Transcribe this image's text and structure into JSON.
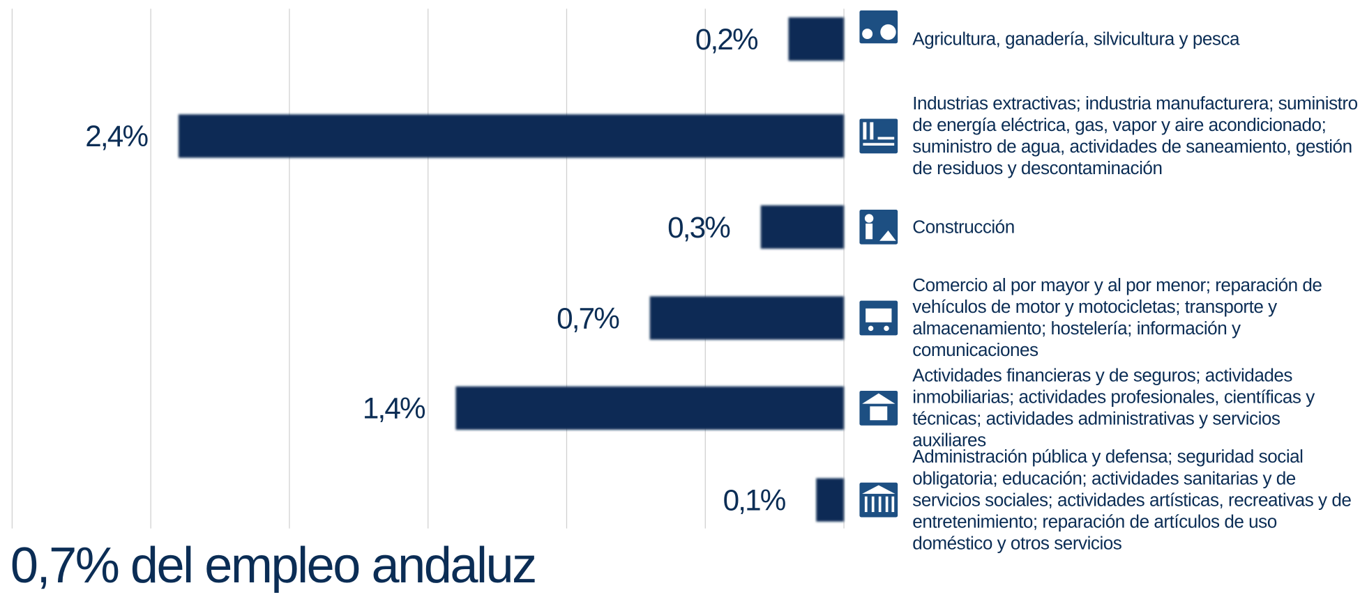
{
  "chart_data": {
    "type": "bar",
    "orientation": "horizontal",
    "direction": "leftward",
    "title": "0,7% del empleo andaluz",
    "categories": [
      "Agricultura, ganadería, silvicultura y pesca",
      "Industrias extractivas; industria manufacturera; suministro de energía eléctrica, gas, vapor y aire acondicionado; suministro de agua, actividades de saneamiento, gestión de residuos y descontaminación",
      "Construcción",
      "Comercio al por mayor y al por menor; reparación de vehículos de motor y motocicletas; transporte y almacenamiento; hostelería; información y comunicaciones",
      "Actividades financieras y de seguros; actividades inmobiliarias; actividades profesionales, científicas y técnicas; actividades administrativas y servicios auxiliares",
      "Administración pública y defensa; seguridad social obligatoria; educación; actividades sanitarias y de servicios sociales; actividades artísticas, recreativas y de entretenimiento; reparación de artículos de uso doméstico y otros servicios"
    ],
    "values": [
      0.2,
      2.4,
      0.3,
      0.7,
      1.4,
      0.1
    ],
    "value_labels": [
      "0,2%",
      "2,4%",
      "0,3%",
      "0,7%",
      "1,4%",
      "0,1%"
    ],
    "color": "#0a2c54",
    "xlim": [
      0,
      3
    ],
    "xticks": [
      0,
      0.5,
      1,
      1.5,
      2,
      2.5,
      3
    ],
    "grid": true
  }
}
